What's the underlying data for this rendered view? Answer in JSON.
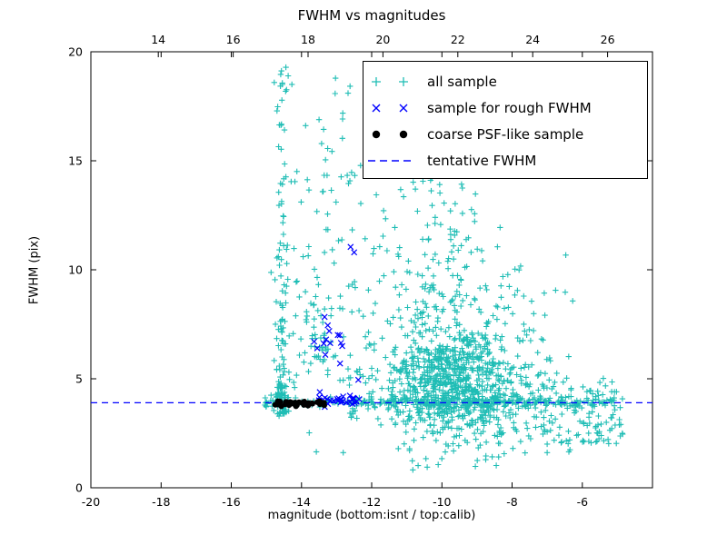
{
  "chart_data": {
    "type": "scatter",
    "title": "FWHM vs magnitudes",
    "xlabel": "magnitude (bottom:isnt / top:calib)",
    "ylabel": "FWHM (pix)",
    "xlim": [
      -20,
      -4
    ],
    "ylim": [
      0,
      20
    ],
    "x_ticks": [
      -20,
      -18,
      -16,
      -14,
      -12,
      -10,
      -8,
      -6
    ],
    "y_ticks": [
      0,
      5,
      10,
      15,
      20
    ],
    "top_axis": {
      "lim": [
        12.2,
        27.2
      ],
      "ticks": [
        14,
        16,
        18,
        20,
        22,
        24,
        26
      ]
    },
    "tentative_fwhm": 3.9,
    "seed": 7,
    "legend_position": "upper right",
    "grid": false,
    "series": [
      {
        "name": "all sample",
        "marker": "plus",
        "color": "#1fbdb5",
        "clusters": [
          {
            "kind": "col",
            "n": 130,
            "cx": -14.55,
            "sx": 0.1,
            "y0": 3.4,
            "y1": 19.3,
            "pow": 2.2
          },
          {
            "kind": "gauss",
            "n": 45,
            "cx": -14.62,
            "cy": 4.2,
            "sx": 0.13,
            "sy": 0.35
          },
          {
            "kind": "box",
            "n": 70,
            "x0": -14.35,
            "x1": -12.2,
            "y0": 4.6,
            "y1": 14.8
          },
          {
            "kind": "gauss",
            "n": 40,
            "cx": -13.45,
            "cy": 7.0,
            "sx": 0.3,
            "sy": 0.9
          },
          {
            "kind": "box",
            "n": 52,
            "x0": -12.3,
            "x1": -10.3,
            "y0": 4.4,
            "y1": 16.5
          },
          {
            "kind": "gauss",
            "n": 600,
            "cx": -9.6,
            "cy": 4.9,
            "sx": 0.85,
            "sy": 1.1
          },
          {
            "kind": "gauss",
            "n": 340,
            "cx": -9.4,
            "cy": 5.7,
            "sx": 1.5,
            "sy": 2.6
          },
          {
            "kind": "box",
            "n": 60,
            "x0": -10.6,
            "x1": -9.0,
            "y0": 8.0,
            "y1": 14.6
          },
          {
            "kind": "band",
            "n": 260,
            "x0": -15.05,
            "x1": -4.85,
            "cy": 3.92,
            "sy": 0.1
          },
          {
            "kind": "band",
            "n": 140,
            "x0": -12.6,
            "x1": -5.0,
            "cy": 3.95,
            "sy": 0.42
          },
          {
            "kind": "box",
            "n": 90,
            "x0": -7.6,
            "x1": -4.85,
            "y0": 2.0,
            "y1": 4.9
          },
          {
            "kind": "box",
            "n": 50,
            "x0": -11.5,
            "x1": -5.2,
            "y0": 1.6,
            "y1": 3.3
          },
          {
            "kind": "box",
            "n": 45,
            "x0": -13.9,
            "x1": -8.6,
            "y0": 14.5,
            "y1": 19.2
          }
        ],
        "points": []
      },
      {
        "name": "sample for rough FWHM",
        "marker": "x",
        "color": "#0000ff",
        "clusters": [
          {
            "kind": "band",
            "n": 28,
            "x0": -13.52,
            "x1": -12.35,
            "cy": 4.02,
            "sy": 0.12
          },
          {
            "kind": "gauss",
            "n": 11,
            "cx": -13.05,
            "cy": 6.9,
            "sx": 0.28,
            "sy": 0.55
          }
        ],
        "points": [
          [
            -12.6,
            11.05
          ],
          [
            -12.5,
            10.8
          ],
          [
            -13.55,
            6.4
          ],
          [
            -12.38,
            4.95
          ],
          [
            -12.9,
            5.7
          ],
          [
            -13.32,
            6.1
          ]
        ]
      },
      {
        "name": "coarse PSF-like sample",
        "marker": "dot",
        "color": "#000000",
        "clusters": [
          {
            "kind": "band",
            "n": 42,
            "x0": -14.85,
            "x1": -13.35,
            "cy": 3.86,
            "sy": 0.06
          }
        ],
        "points": []
      },
      {
        "name": "tentative FWHM",
        "marker": "dashed-line",
        "color": "#0000ff",
        "y": 3.9
      }
    ]
  }
}
